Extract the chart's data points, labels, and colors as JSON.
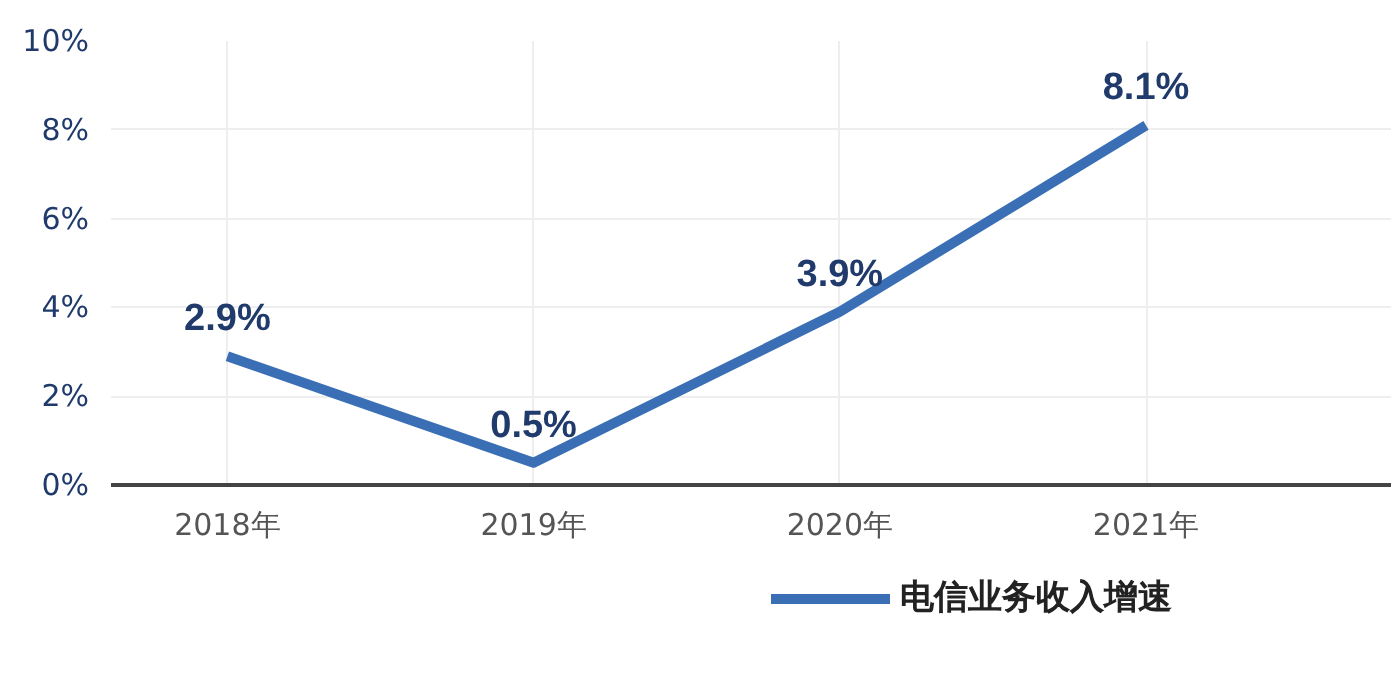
{
  "chart_data": {
    "type": "line",
    "categories": [
      "2018年",
      "2019年",
      "2020年",
      "2021年"
    ],
    "series": [
      {
        "name": "电信业务收入增速",
        "color": "#3a6fb5",
        "values": [
          2.9,
          0.5,
          3.9,
          8.1
        ]
      }
    ],
    "ylim": [
      0,
      10
    ],
    "yticks": [
      {
        "value": 0,
        "label": "0%"
      },
      {
        "value": 2,
        "label": "2%"
      },
      {
        "value": 4,
        "label": "4%"
      },
      {
        "value": 6,
        "label": "6%"
      },
      {
        "value": 8,
        "label": "8%"
      },
      {
        "value": 10,
        "label": "10%"
      }
    ],
    "value_labels": [
      "2.9%",
      "0.5%",
      "3.9%",
      "8.1%"
    ],
    "grid": true,
    "legend": "bottom",
    "marker": "none",
    "line_style": "solid"
  }
}
